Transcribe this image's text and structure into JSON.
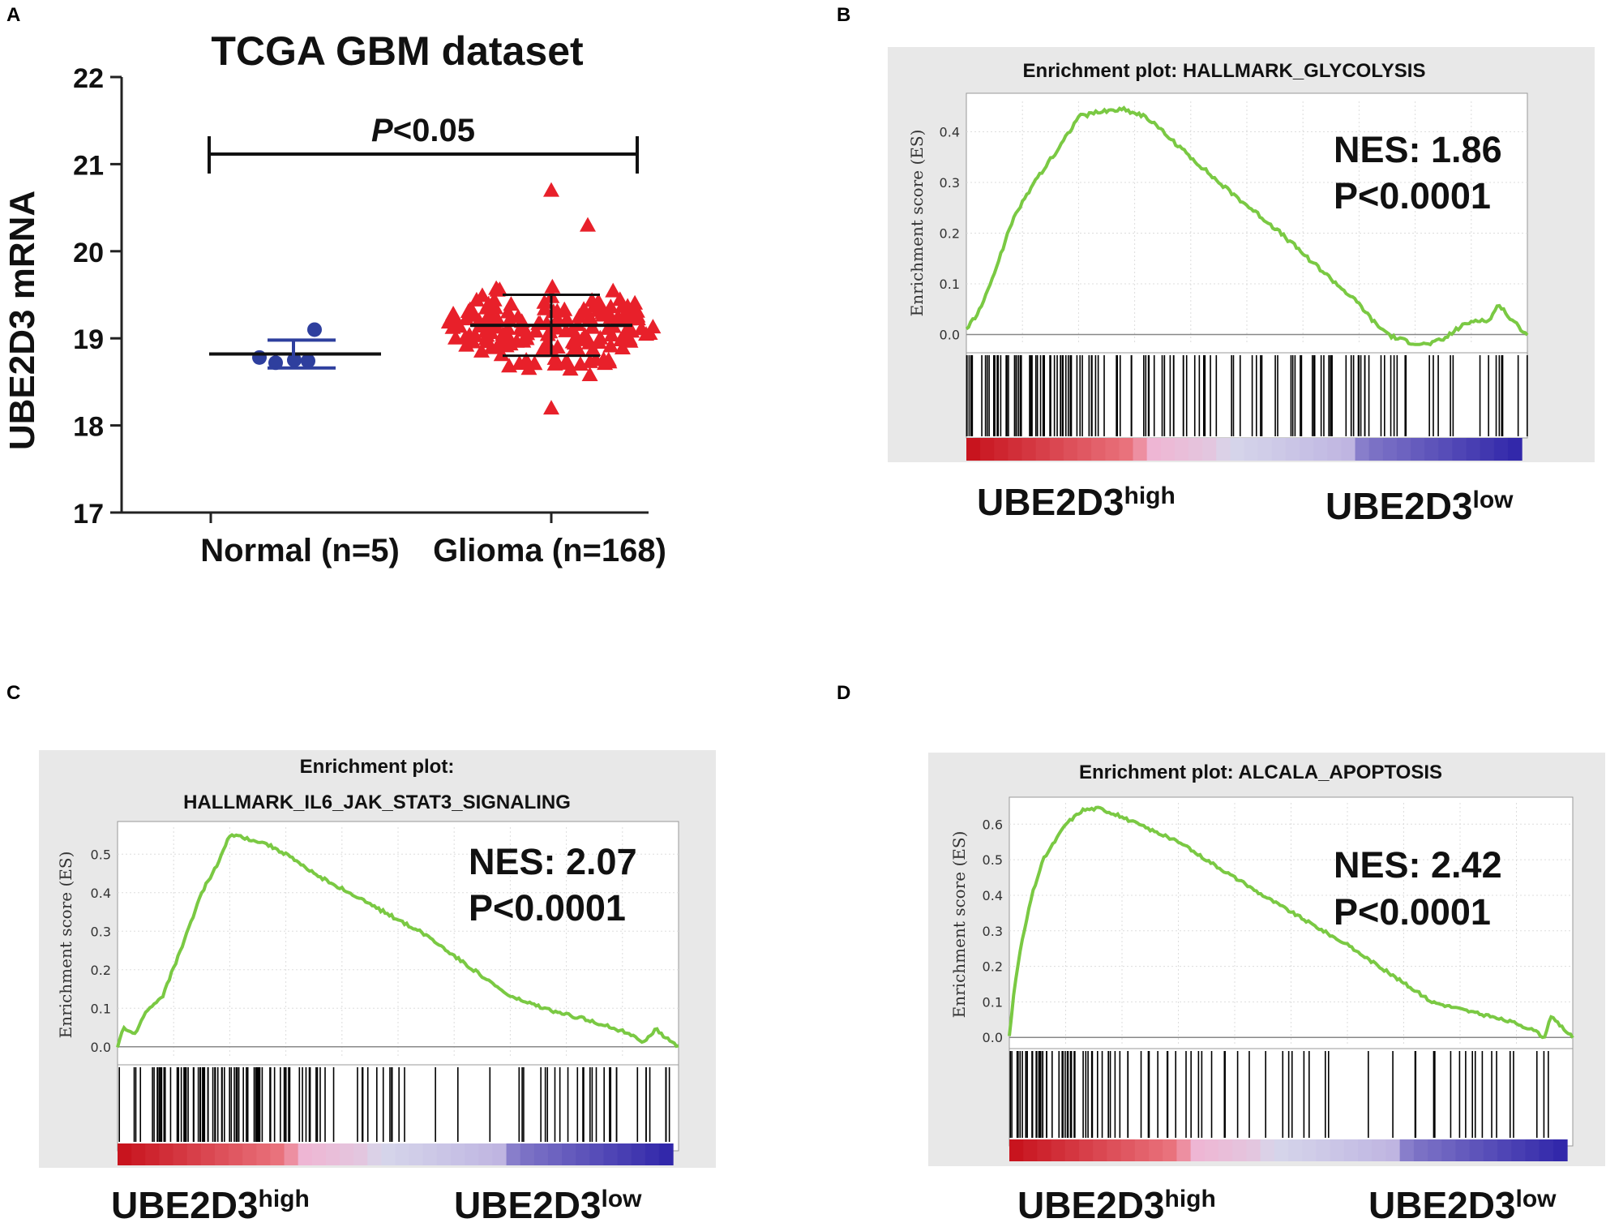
{
  "colors": {
    "glioma": "#e8202a",
    "normal": "#2e3f9e",
    "curve": "#7ac943",
    "gsea_bg": "#e8e8e8",
    "rank_high": "#d2222d",
    "rank_mid": "#f2b6d4",
    "rank_low": "#3a34b0"
  },
  "panels": {
    "a": {
      "letter": "A",
      "title": "TCGA GBM dataset",
      "ylabel": "UBE2D3 mRNA",
      "ticks": [
        "17",
        "18",
        "19",
        "20",
        "21",
        "22"
      ],
      "sig_label": "P<0.05",
      "sig_p": "P",
      "sig_rest": "<0.05"
    },
    "b": {
      "letter": "B",
      "title": "Enrichment plot: HALLMARK_GLYCOLYSIS",
      "ylabel": "Enrichment score (ES)",
      "ticks": [
        "0.0",
        "0.1",
        "0.2",
        "0.3",
        "0.4"
      ],
      "nes": "NES: 1.86",
      "p": "P<0.0001"
    },
    "c": {
      "letter": "C",
      "title_line1": "Enrichment plot:",
      "title_line2": "HALLMARK_IL6_JAK_STAT3_SIGNALING",
      "ylabel": "Enrichment score (ES)",
      "ticks": [
        "0.0",
        "0.1",
        "0.2",
        "0.3",
        "0.4",
        "0.5"
      ],
      "nes": "NES: 2.07",
      "p": "P<0.0001"
    },
    "d": {
      "letter": "D",
      "title": "Enrichment plot: ALCALA_APOPTOSIS",
      "ylabel": "Enrichment score (ES)",
      "ticks": [
        "0.0",
        "0.1",
        "0.2",
        "0.3",
        "0.4",
        "0.5",
        "0.6"
      ],
      "nes": "NES: 2.42",
      "p": "P<0.0001"
    }
  },
  "phenotype": {
    "base": "UBE2D3",
    "high": "high",
    "low": "low"
  },
  "chart_data": [
    {
      "type": "scatter",
      "subtype": "dot plot with mean and SD",
      "title": "TCGA GBM dataset",
      "ylabel": "UBE2D3 mRNA",
      "ylim": [
        17,
        22
      ],
      "yticks": [
        17,
        18,
        19,
        20,
        21,
        22
      ],
      "categories": [
        "Normal (n=5)",
        "Glioma (n=168)"
      ],
      "annotation": "P<0.05",
      "series": [
        {
          "name": "Normal (n=5)",
          "marker": "circle",
          "values": [
            18.78,
            18.72,
            18.75,
            18.74,
            19.1
          ],
          "mean": 18.82,
          "sd": 0.16
        },
        {
          "name": "Glioma (n=168)",
          "marker": "triangle",
          "mean": 19.15,
          "sd": 0.35,
          "extremes": [
            20.7,
            20.3,
            18.2
          ]
        }
      ]
    },
    {
      "type": "line",
      "subtype": "GSEA enrichment plot",
      "title": "Enrichment plot: HALLMARK_GLYCOLYSIS",
      "ylabel": "Enrichment score (ES)",
      "ylim": [
        -0.02,
        0.46
      ],
      "yticks": [
        0.0,
        0.1,
        0.2,
        0.3,
        0.4
      ],
      "annotations": [
        "NES: 1.86",
        "P<0.0001"
      ],
      "x": [
        0,
        0.02,
        0.05,
        0.08,
        0.12,
        0.16,
        0.2,
        0.24,
        0.28,
        0.32,
        0.37,
        0.45,
        0.55,
        0.65,
        0.7,
        0.73,
        0.76,
        0.79,
        0.82,
        0.85,
        0.88,
        0.91,
        0.93,
        0.95,
        0.97,
        1.0
      ],
      "es": [
        0.01,
        0.04,
        0.12,
        0.22,
        0.3,
        0.36,
        0.43,
        0.44,
        0.445,
        0.43,
        0.38,
        0.3,
        0.21,
        0.11,
        0.06,
        0.02,
        -0.005,
        -0.015,
        -0.02,
        -0.01,
        0.015,
        0.03,
        0.025,
        0.06,
        0.03,
        0.0
      ],
      "hit_density": [
        0.8,
        1.0,
        0.9,
        0.85,
        0.6,
        0.35,
        0.45,
        0.55,
        0.4,
        0.2,
        0.3,
        0.5,
        0.5,
        0.6,
        0.45,
        0.35,
        0.2,
        0.15,
        0.25,
        0.35
      ]
    },
    {
      "type": "line",
      "subtype": "GSEA enrichment plot",
      "title": "Enrichment plot: HALLMARK_IL6_JAK_STAT3_SIGNALING",
      "ylabel": "Enrichment score (ES)",
      "ylim": [
        -0.03,
        0.57
      ],
      "yticks": [
        0.0,
        0.1,
        0.2,
        0.3,
        0.4,
        0.5
      ],
      "annotations": [
        "NES: 2.07",
        "P<0.0001"
      ],
      "x": [
        0,
        0.01,
        0.03,
        0.05,
        0.08,
        0.12,
        0.15,
        0.18,
        0.2,
        0.22,
        0.26,
        0.3,
        0.35,
        0.45,
        0.55,
        0.7,
        0.78,
        0.84,
        0.9,
        0.92,
        0.94,
        0.96,
        0.97,
        1.0
      ],
      "es": [
        0.0,
        0.05,
        0.03,
        0.09,
        0.13,
        0.28,
        0.4,
        0.48,
        0.55,
        0.545,
        0.53,
        0.5,
        0.45,
        0.37,
        0.29,
        0.13,
        0.09,
        0.07,
        0.04,
        0.03,
        0.01,
        0.05,
        0.03,
        0.0
      ],
      "hit_density": [
        0.3,
        0.7,
        0.9,
        1.0,
        0.9,
        0.8,
        0.55,
        0.35,
        0.25,
        0.35,
        0.15,
        0.1,
        0.1,
        0.1,
        0.2,
        0.35,
        0.45,
        0.4,
        0.3,
        0.2
      ]
    },
    {
      "type": "line",
      "subtype": "GSEA enrichment plot",
      "title": "Enrichment plot: ALCALA_APOPTOSIS",
      "ylabel": "Enrichment score (ES)",
      "ylim": [
        -0.02,
        0.66
      ],
      "yticks": [
        0.0,
        0.1,
        0.2,
        0.3,
        0.4,
        0.5,
        0.6
      ],
      "annotations": [
        "NES: 2.42",
        "P<0.0001"
      ],
      "x": [
        0,
        0.01,
        0.02,
        0.04,
        0.06,
        0.08,
        0.1,
        0.13,
        0.16,
        0.2,
        0.3,
        0.45,
        0.6,
        0.75,
        0.85,
        0.9,
        0.93,
        0.95,
        0.96,
        0.98,
        1.0
      ],
      "es": [
        0.0,
        0.15,
        0.25,
        0.4,
        0.5,
        0.55,
        0.6,
        0.64,
        0.645,
        0.62,
        0.55,
        0.4,
        0.26,
        0.1,
        0.06,
        0.04,
        0.02,
        0.0,
        0.06,
        0.03,
        0.0
      ],
      "hit_density": [
        1.0,
        0.9,
        0.75,
        0.5,
        0.35,
        0.3,
        0.25,
        0.2,
        0.15,
        0.2,
        0.2,
        0.15,
        0.1,
        0.1,
        0.15,
        0.25,
        0.3,
        0.25,
        0.15,
        0.1
      ]
    }
  ]
}
